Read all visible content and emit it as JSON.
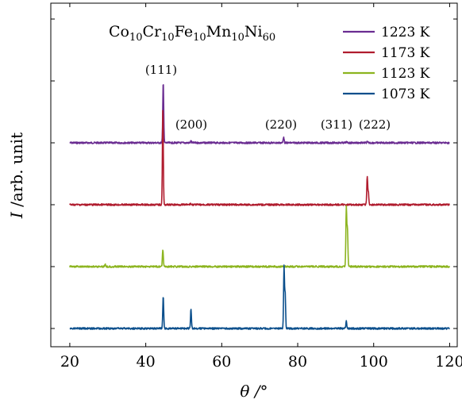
{
  "chart_data": {
    "type": "line",
    "title_parts": [
      "Co",
      "10",
      "Cr",
      "10",
      "Fe",
      "10",
      "Mn",
      "10",
      "Ni",
      "60"
    ],
    "xlabel": "θ /°",
    "ylabel_italic": "I",
    "ylabel_rest": " /arb. unit",
    "xlim": [
      15,
      122
    ],
    "x_ticks": [
      20,
      40,
      60,
      80,
      100,
      120
    ],
    "y_ticks_shown": false,
    "grid": false,
    "legend_position": "top-right",
    "peak_labels": [
      "(111)",
      "(200)",
      "(220)",
      "(311)",
      "(222)"
    ],
    "series": [
      {
        "name": "1223 K",
        "color": "#6a2c91",
        "offset": 3,
        "peaks": [
          {
            "x": 44.6,
            "y": 1.0
          },
          {
            "x": 51.9,
            "y": 0.03
          },
          {
            "x": 76.3,
            "y": 0.1
          },
          {
            "x": 92.8,
            "y": 0.015
          },
          {
            "x": 98.3,
            "y": 0.015
          }
        ]
      },
      {
        "name": "1173 K",
        "color": "#b01c2e",
        "offset": 2,
        "peaks": [
          {
            "x": 44.5,
            "y": 1.55
          },
          {
            "x": 51.8,
            "y": 0.02
          },
          {
            "x": 98.3,
            "y": 0.45
          },
          {
            "x": 98.6,
            "y": 0.2
          }
        ]
      },
      {
        "name": "1123 K",
        "color": "#8cb41f",
        "offset": 1,
        "peaks": [
          {
            "x": 29.3,
            "y": 0.04
          },
          {
            "x": 44.5,
            "y": 0.28
          },
          {
            "x": 92.8,
            "y": 0.95
          },
          {
            "x": 93.1,
            "y": 0.6
          }
        ]
      },
      {
        "name": "1073 K",
        "color": "#0b4f8c",
        "offset": 0,
        "peaks": [
          {
            "x": 44.6,
            "y": 0.53
          },
          {
            "x": 51.9,
            "y": 0.31
          },
          {
            "x": 76.4,
            "y": 1.0
          },
          {
            "x": 76.7,
            "y": 0.55
          },
          {
            "x": 92.8,
            "y": 0.12
          }
        ]
      }
    ]
  }
}
